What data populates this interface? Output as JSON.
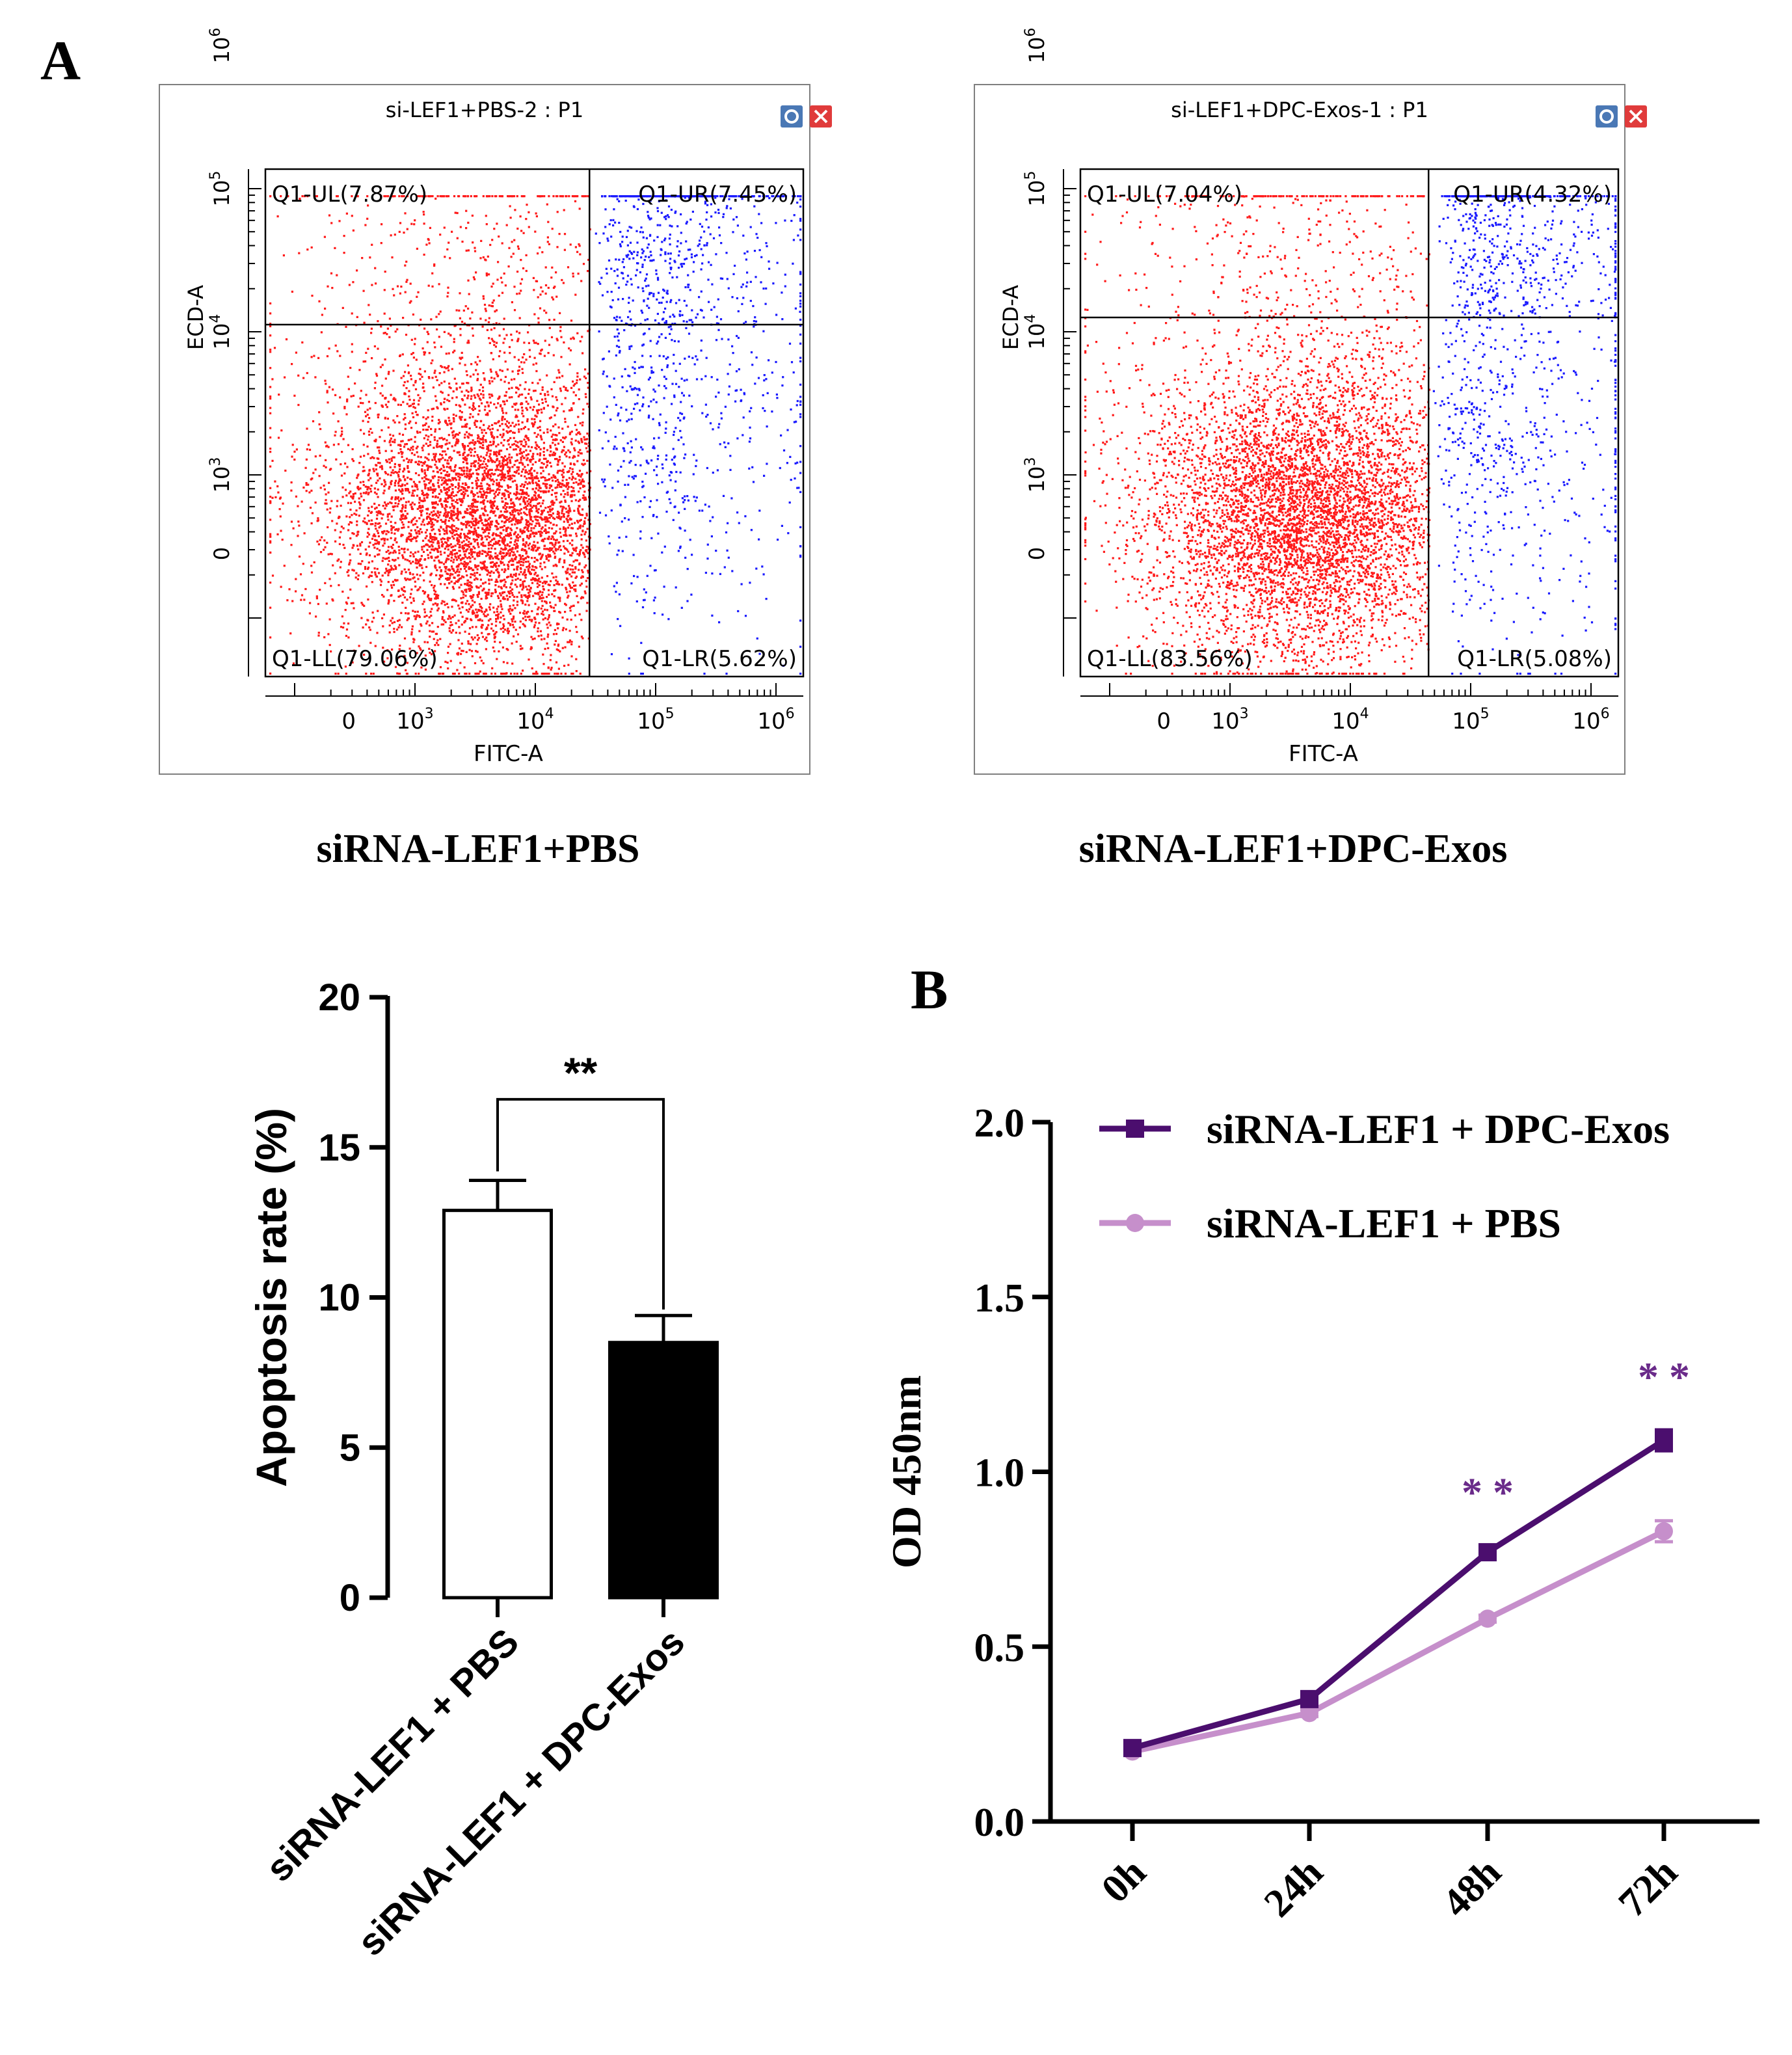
{
  "panel_labels": {
    "a": "A",
    "b": "B"
  },
  "colors": {
    "scatter_red": "#ff1a1a",
    "scatter_blue": "#1a1aff",
    "dpc_line": "#4b0e6e",
    "pbs_line": "#c68fcb",
    "sig_purple": "#6a2b8a"
  },
  "chart_data": [
    {
      "type": "scatter",
      "title": "si-LEF1+PBS-2 : P1",
      "caption": "siRNA-LEF1+PBS",
      "xlabel": "FITC-A",
      "ylabel": "ECD-A",
      "x_ticks": [
        {
          "b": "0",
          "s": ""
        },
        {
          "b": "10",
          "s": "3"
        },
        {
          "b": "10",
          "s": "4"
        },
        {
          "b": "10",
          "s": "5"
        },
        {
          "b": "10",
          "s": "6"
        }
      ],
      "y_ticks": [
        {
          "b": "0",
          "s": ""
        },
        {
          "b": "10",
          "s": "3"
        },
        {
          "b": "10",
          "s": "4"
        },
        {
          "b": "10",
          "s": "5"
        },
        {
          "b": "10",
          "s": "6"
        }
      ],
      "gate": {
        "x_decade": 4.45,
        "y_decade": 4.05
      },
      "quadrants": {
        "UL": "Q1-UL(7.87%)",
        "UR": "Q1-UR(7.45%)",
        "LL": "Q1-LL(79.06%)",
        "LR": "Q1-LR(5.62%)"
      },
      "percentages": {
        "UL": 7.87,
        "UR": 7.45,
        "LL": 79.06,
        "LR": 5.62
      },
      "toolbar_icons": [
        "settings-icon",
        "close-icon"
      ]
    },
    {
      "type": "scatter",
      "title": "si-LEF1+DPC-Exos-1 : P1",
      "caption": "siRNA-LEF1+DPC-Exos",
      "xlabel": "FITC-A",
      "ylabel": "ECD-A",
      "x_ticks": [
        {
          "b": "0",
          "s": ""
        },
        {
          "b": "10",
          "s": "3"
        },
        {
          "b": "10",
          "s": "4"
        },
        {
          "b": "10",
          "s": "5"
        },
        {
          "b": "10",
          "s": "6"
        }
      ],
      "y_ticks": [
        {
          "b": "0",
          "s": ""
        },
        {
          "b": "10",
          "s": "3"
        },
        {
          "b": "10",
          "s": "4"
        },
        {
          "b": "10",
          "s": "5"
        },
        {
          "b": "10",
          "s": "6"
        }
      ],
      "gate": {
        "x_decade": 4.65,
        "y_decade": 4.1
      },
      "quadrants": {
        "UL": "Q1-UL(7.04%)",
        "UR": "Q1-UR(4.32%)",
        "LL": "Q1-LL(83.56%)",
        "LR": "Q1-LR(5.08%)"
      },
      "percentages": {
        "UL": 7.04,
        "UR": 4.32,
        "LL": 83.56,
        "LR": 5.08
      },
      "toolbar_icons": [
        "settings-icon",
        "close-icon"
      ]
    },
    {
      "type": "bar",
      "title": "",
      "ylabel": "Apoptosis rate (%)",
      "xlabel": "",
      "categories": [
        "siRNA-LEF1 + PBS",
        "siRNA-LEF1 + DPC-Exos"
      ],
      "values": [
        12.9,
        8.5
      ],
      "errors": [
        1.0,
        0.9
      ],
      "fills": [
        "#ffffff",
        "#000000"
      ],
      "ylim": [
        0,
        20
      ],
      "yticks": [
        0,
        5,
        10,
        15,
        20
      ],
      "significance": {
        "label": "**",
        "between": [
          0,
          1
        ],
        "y": 16.6
      }
    },
    {
      "type": "line",
      "title": "",
      "ylabel": "OD 450nm",
      "xlabel": "",
      "x": [
        "0h",
        "24h",
        "48h",
        "72h"
      ],
      "ylim": [
        0,
        2
      ],
      "yticks": [
        "0.0",
        "0.5",
        "1.0",
        "1.5",
        "2.0"
      ],
      "legend_position": "top-right",
      "series": [
        {
          "name": "siRNA-LEF1 + DPC-Exos",
          "values": [
            0.21,
            0.35,
            0.77,
            1.09
          ],
          "errors": [
            0.01,
            0.01,
            0.02,
            0.03
          ],
          "marker": "square"
        },
        {
          "name": "siRNA-LEF1 + PBS",
          "values": [
            0.2,
            0.31,
            0.58,
            0.83
          ],
          "errors": [
            0.01,
            0.01,
            0.01,
            0.03
          ],
          "marker": "circle"
        }
      ],
      "significance": [
        {
          "x": "48h",
          "label": "* *"
        },
        {
          "x": "72h",
          "label": "* *"
        }
      ]
    }
  ]
}
